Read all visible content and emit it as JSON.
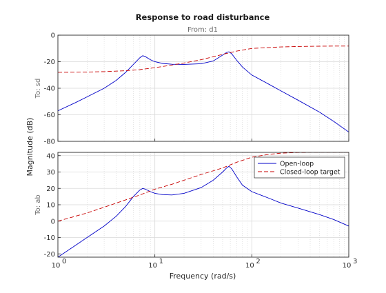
{
  "figure": {
    "title": "Response to road disturbance",
    "subtitle": "From: d1",
    "xlabel": "Frequency  (rad/s)",
    "ylabel": "Magnitude (dB)"
  },
  "colors": {
    "open_loop": "#0000c8",
    "closed_loop_target": "#c80000",
    "grid": "#d9d9d9",
    "axes": "#262626"
  },
  "chart_data": [
    {
      "type": "line",
      "panel": "To: sd",
      "ylabel": "To: sd",
      "x_scale": "log",
      "xlim": [
        1,
        1000
      ],
      "ylim": [
        -80,
        0
      ],
      "yticks": [
        -80,
        -60,
        -40,
        -20,
        0
      ],
      "grid": true,
      "series": [
        {
          "name": "Open-loop",
          "style": "solid",
          "x": [
            1,
            1.5,
            2,
            3,
            4,
            5,
            6,
            7,
            7.5,
            8,
            9,
            10,
            12,
            15,
            20,
            30,
            40,
            50,
            55,
            58,
            62,
            70,
            80,
            100,
            150,
            200,
            300,
            500,
            700,
            1000
          ],
          "y": [
            -57,
            -51,
            -46.5,
            -40,
            -34,
            -28,
            -22,
            -17,
            -15.5,
            -16.2,
            -18.5,
            -20,
            -21.3,
            -21.9,
            -22,
            -21.5,
            -19.5,
            -15,
            -13,
            -12.5,
            -14,
            -19,
            -24,
            -30,
            -37,
            -42,
            -49,
            -58,
            -65,
            -73
          ]
        },
        {
          "name": "Closed-loop target",
          "style": "dashed",
          "x": [
            1,
            2,
            3,
            5,
            7,
            10,
            15,
            20,
            30,
            50,
            70,
            100,
            150,
            200,
            300,
            500,
            700,
            1000
          ],
          "y": [
            -28,
            -27.8,
            -27.5,
            -26.8,
            -26,
            -24.5,
            -22.5,
            -21,
            -18.5,
            -14.5,
            -12,
            -10,
            -9.3,
            -8.9,
            -8.5,
            -8.3,
            -8.2,
            -8.2
          ]
        }
      ]
    },
    {
      "type": "line",
      "panel": "To: ab",
      "ylabel": "To: ab",
      "x_scale": "log",
      "xlim": [
        1,
        1000
      ],
      "ylim": [
        -22,
        42
      ],
      "yticks": [
        -20,
        -10,
        0,
        10,
        20,
        30,
        40
      ],
      "xticks": [
        1,
        10,
        100,
        1000
      ],
      "xtick_labels": [
        "10",
        "10",
        "10",
        "10"
      ],
      "xtick_exponents": [
        "0",
        "1",
        "2",
        "3"
      ],
      "grid": true,
      "legend": "top-right",
      "series": [
        {
          "name": "Open-loop",
          "style": "solid",
          "x": [
            1,
            1.5,
            2,
            3,
            4,
            5,
            6,
            7,
            7.5,
            8,
            9,
            10,
            12,
            15,
            20,
            30,
            40,
            50,
            55,
            58,
            62,
            70,
            80,
            100,
            150,
            200,
            300,
            500,
            700,
            1000
          ],
          "y": [
            -22,
            -15,
            -10,
            -3,
            3,
            9,
            15,
            19,
            20,
            19.5,
            18,
            17,
            16.2,
            16,
            17,
            20.5,
            25,
            30,
            32.5,
            33.5,
            32,
            27,
            22,
            18,
            14,
            11,
            8,
            4,
            1,
            -3
          ]
        },
        {
          "name": "Closed-loop target",
          "style": "dashed",
          "x": [
            1,
            2,
            3,
            5,
            7,
            10,
            15,
            20,
            30,
            50,
            70,
            100,
            150,
            200,
            300,
            500,
            700,
            1000
          ],
          "y": [
            0,
            5,
            8.5,
            13,
            16,
            19.5,
            22.5,
            25,
            28.5,
            32.5,
            36,
            39,
            40.8,
            41.5,
            41.9,
            42,
            42,
            42
          ]
        }
      ]
    }
  ]
}
